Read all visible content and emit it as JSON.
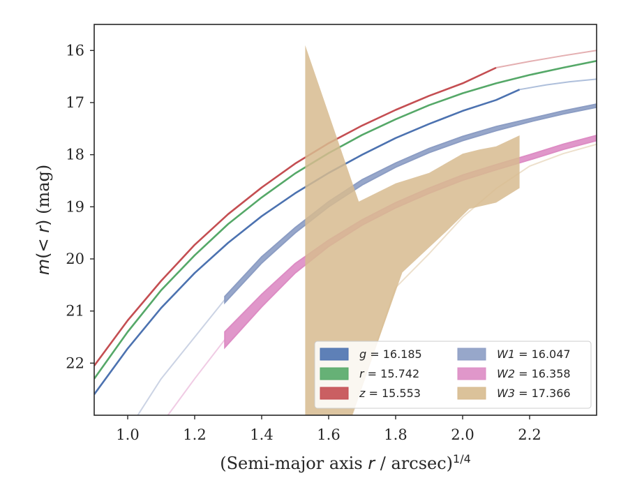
{
  "chart_data": {
    "type": "line",
    "xlabel": "(Semi-major axis r / arcsec)^{1/4}",
    "ylabel": "m(< r) (mag)",
    "xlim": [
      0.9,
      2.4
    ],
    "ylim": [
      23.0,
      15.5
    ],
    "y_inverted": true,
    "grid": false,
    "legend_position": "lower-right",
    "legend_columns": 2,
    "x_ticks": [
      "1.0",
      "1.2",
      "1.4",
      "1.6",
      "1.8",
      "2.0",
      "2.2"
    ],
    "y_ticks": [
      "16",
      "17",
      "18",
      "19",
      "20",
      "21",
      "22"
    ],
    "series": [
      {
        "name": "g = 16.185",
        "legend_symbol": "g",
        "legend_value": "16.185",
        "color": "#4c72b0",
        "solid_x": [
          0.9,
          1.0,
          1.1,
          1.2,
          1.3,
          1.4,
          1.5,
          1.6,
          1.7,
          1.8,
          1.9,
          2.0,
          2.1,
          2.17
        ],
        "solid_y": [
          22.6,
          21.72,
          20.94,
          20.27,
          19.69,
          19.18,
          18.74,
          18.35,
          18.0,
          17.68,
          17.41,
          17.16,
          16.95,
          16.75
        ],
        "faded_x": [
          2.17,
          2.25,
          2.32,
          2.4
        ],
        "faded_y": [
          16.75,
          16.66,
          16.6,
          16.55
        ]
      },
      {
        "name": "r = 15.742",
        "legend_symbol": "r",
        "legend_value": "15.742",
        "color": "#55a868",
        "solid_x": [
          0.9,
          1.0,
          1.1,
          1.2,
          1.3,
          1.4,
          1.5,
          1.6,
          1.7,
          1.8,
          1.9,
          2.0,
          2.1,
          2.2,
          2.3,
          2.4
        ],
        "solid_y": [
          22.3,
          21.4,
          20.6,
          19.93,
          19.33,
          18.82,
          18.36,
          17.97,
          17.62,
          17.32,
          17.05,
          16.82,
          16.63,
          16.47,
          16.33,
          16.2
        ],
        "faded_x": [],
        "faded_y": []
      },
      {
        "name": "z = 15.553",
        "legend_symbol": "z",
        "legend_value": "15.553",
        "color": "#c44e52",
        "solid_x": [
          0.9,
          1.0,
          1.1,
          1.2,
          1.3,
          1.4,
          1.5,
          1.6,
          1.7,
          1.8,
          1.9,
          2.0,
          2.1
        ],
        "solid_y": [
          22.05,
          21.18,
          20.42,
          19.73,
          19.14,
          18.63,
          18.17,
          17.78,
          17.44,
          17.14,
          16.87,
          16.63,
          16.33
        ],
        "faded_x": [
          2.1,
          2.2,
          2.3,
          2.4
        ],
        "faded_y": [
          16.33,
          16.21,
          16.1,
          16.0
        ]
      },
      {
        "name": "W1 = 16.047",
        "legend_symbol": "W1",
        "legend_value": "16.047",
        "color": "#8c9dc4",
        "band_x": [
          1.29,
          1.4,
          1.5,
          1.6,
          1.7,
          1.8,
          1.9,
          2.0,
          2.1,
          2.2,
          2.3,
          2.4
        ],
        "band_y": [
          20.78,
          20.02,
          19.45,
          18.95,
          18.53,
          18.2,
          17.92,
          17.69,
          17.5,
          17.34,
          17.19,
          17.06
        ],
        "band_halfwidth": [
          0.06,
          0.06,
          0.05,
          0.05,
          0.05,
          0.04,
          0.04,
          0.04,
          0.04,
          0.03,
          0.03,
          0.03
        ],
        "faded_x": [
          1.03,
          1.1,
          1.2,
          1.29
        ],
        "faded_y": [
          23.0,
          22.3,
          21.5,
          20.78
        ]
      },
      {
        "name": "W2 = 16.358",
        "legend_symbol": "W2",
        "legend_value": "16.358",
        "color": "#dd8cc4",
        "band_x": [
          1.29,
          1.4,
          1.5,
          1.6,
          1.7,
          1.8,
          1.9,
          2.0,
          2.1,
          2.2,
          2.3,
          2.4
        ],
        "band_y": [
          21.55,
          20.8,
          20.18,
          19.7,
          19.3,
          18.97,
          18.69,
          18.44,
          18.24,
          18.05,
          17.85,
          17.68
        ],
        "band_halfwidth": [
          0.15,
          0.12,
          0.09,
          0.06,
          0.05,
          0.05,
          0.05,
          0.05,
          0.05,
          0.05,
          0.05,
          0.05
        ],
        "faded_x": [
          1.12,
          1.2,
          1.29
        ],
        "faded_y": [
          23.0,
          22.3,
          21.55
        ]
      },
      {
        "name": "W3 = 17.366",
        "legend_symbol": "W3",
        "legend_value": "17.366",
        "color": "#d7bb8f",
        "band_upper_x": [
          1.53,
          1.69,
          1.8,
          1.9,
          2.0,
          2.05,
          2.1,
          2.17
        ],
        "band_upper_y": [
          15.9,
          18.9,
          18.55,
          18.35,
          17.98,
          17.9,
          17.84,
          17.63
        ],
        "band_lower_x": [
          2.17,
          2.1,
          2.02,
          1.95,
          1.82,
          1.67,
          1.53
        ],
        "band_lower_y": [
          18.64,
          18.92,
          19.04,
          19.48,
          20.26,
          23.0,
          23.0
        ],
        "faded_x": [
          1.67,
          1.8,
          1.9,
          2.0,
          2.1,
          2.2,
          2.3,
          2.4
        ],
        "faded_y": [
          23.0,
          20.55,
          19.9,
          19.2,
          18.65,
          18.22,
          17.98,
          17.8
        ]
      }
    ]
  }
}
